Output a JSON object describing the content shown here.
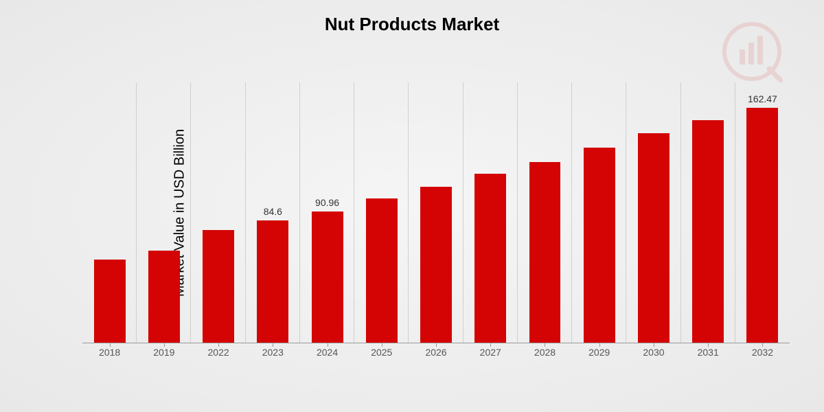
{
  "title": {
    "text": "Nut Products Market",
    "fontsize": 26,
    "color": "#000000"
  },
  "ylabel": {
    "text": "Market Value in USD Billion",
    "fontsize": 20,
    "color": "#000000"
  },
  "chart": {
    "type": "bar",
    "categories": [
      "2018",
      "2019",
      "2022",
      "2023",
      "2024",
      "2025",
      "2026",
      "2027",
      "2028",
      "2029",
      "2030",
      "2031",
      "2032"
    ],
    "values": [
      58,
      64,
      78,
      84.6,
      90.96,
      100,
      108,
      117,
      125,
      135,
      145,
      154,
      162.47
    ],
    "value_labels": [
      "",
      "",
      "",
      "84.6",
      "90.96",
      "",
      "",
      "",
      "",
      "",
      "",
      "",
      "162.47"
    ],
    "bar_color": "#d40404",
    "bar_width": 0.58,
    "ymax": 180,
    "background": "radial-gradient(#f5f5f5,#e8e8e8)",
    "gridline_color": "#cfcfcf",
    "axis_color": "#999999",
    "xlabel_fontsize": 14,
    "value_label_fontsize": 14,
    "value_label_color": "#333333"
  },
  "watermark": {
    "opacity": 0.1,
    "color": "#d40404"
  }
}
